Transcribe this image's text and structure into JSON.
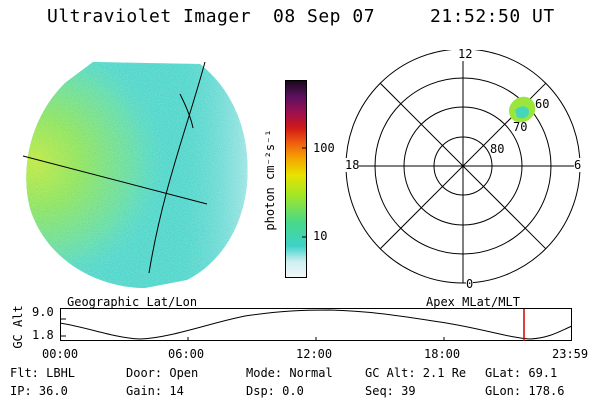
{
  "header": {
    "instrument": "Ultraviolet Imager",
    "date": "08 Sep 07",
    "time": "21:52:50 UT"
  },
  "colorbar": {
    "unit_label": "photon cm⁻²s⁻¹",
    "ticks": [
      {
        "label": "100",
        "value": 100
      },
      {
        "label": "10",
        "value": 10
      }
    ]
  },
  "polar": {
    "mlt_labels": {
      "top": "12",
      "right": "6",
      "bottom": "0",
      "left": "18"
    },
    "lat_labels": [
      "60",
      "70",
      "80"
    ]
  },
  "timeline": {
    "left_label": "Geographic Lat/Lon",
    "right_label": "Apex MLat/MLT",
    "y_title": "GC Alt",
    "y_ticks": [
      "9.0",
      "1.8"
    ],
    "x_ticks": [
      "00:00",
      "06:00",
      "12:00",
      "18:00",
      "23:59"
    ]
  },
  "info": {
    "flt": "Flt: LBHL",
    "door": "Door: Open",
    "mode": "Mode: Normal",
    "gc_alt": "GC Alt: 2.1 Re",
    "glat": "GLat:  69.1",
    "ip": "IP: 36.0",
    "gain": "Gain: 14",
    "dsp": "Dsp:    0.0",
    "seq": "Seq: 39",
    "glon": "GLon: 178.6"
  },
  "colors": {
    "accent_marker": "#d00000",
    "disk_main": "#38d2c6",
    "disk_bright": "#9be63c"
  }
}
